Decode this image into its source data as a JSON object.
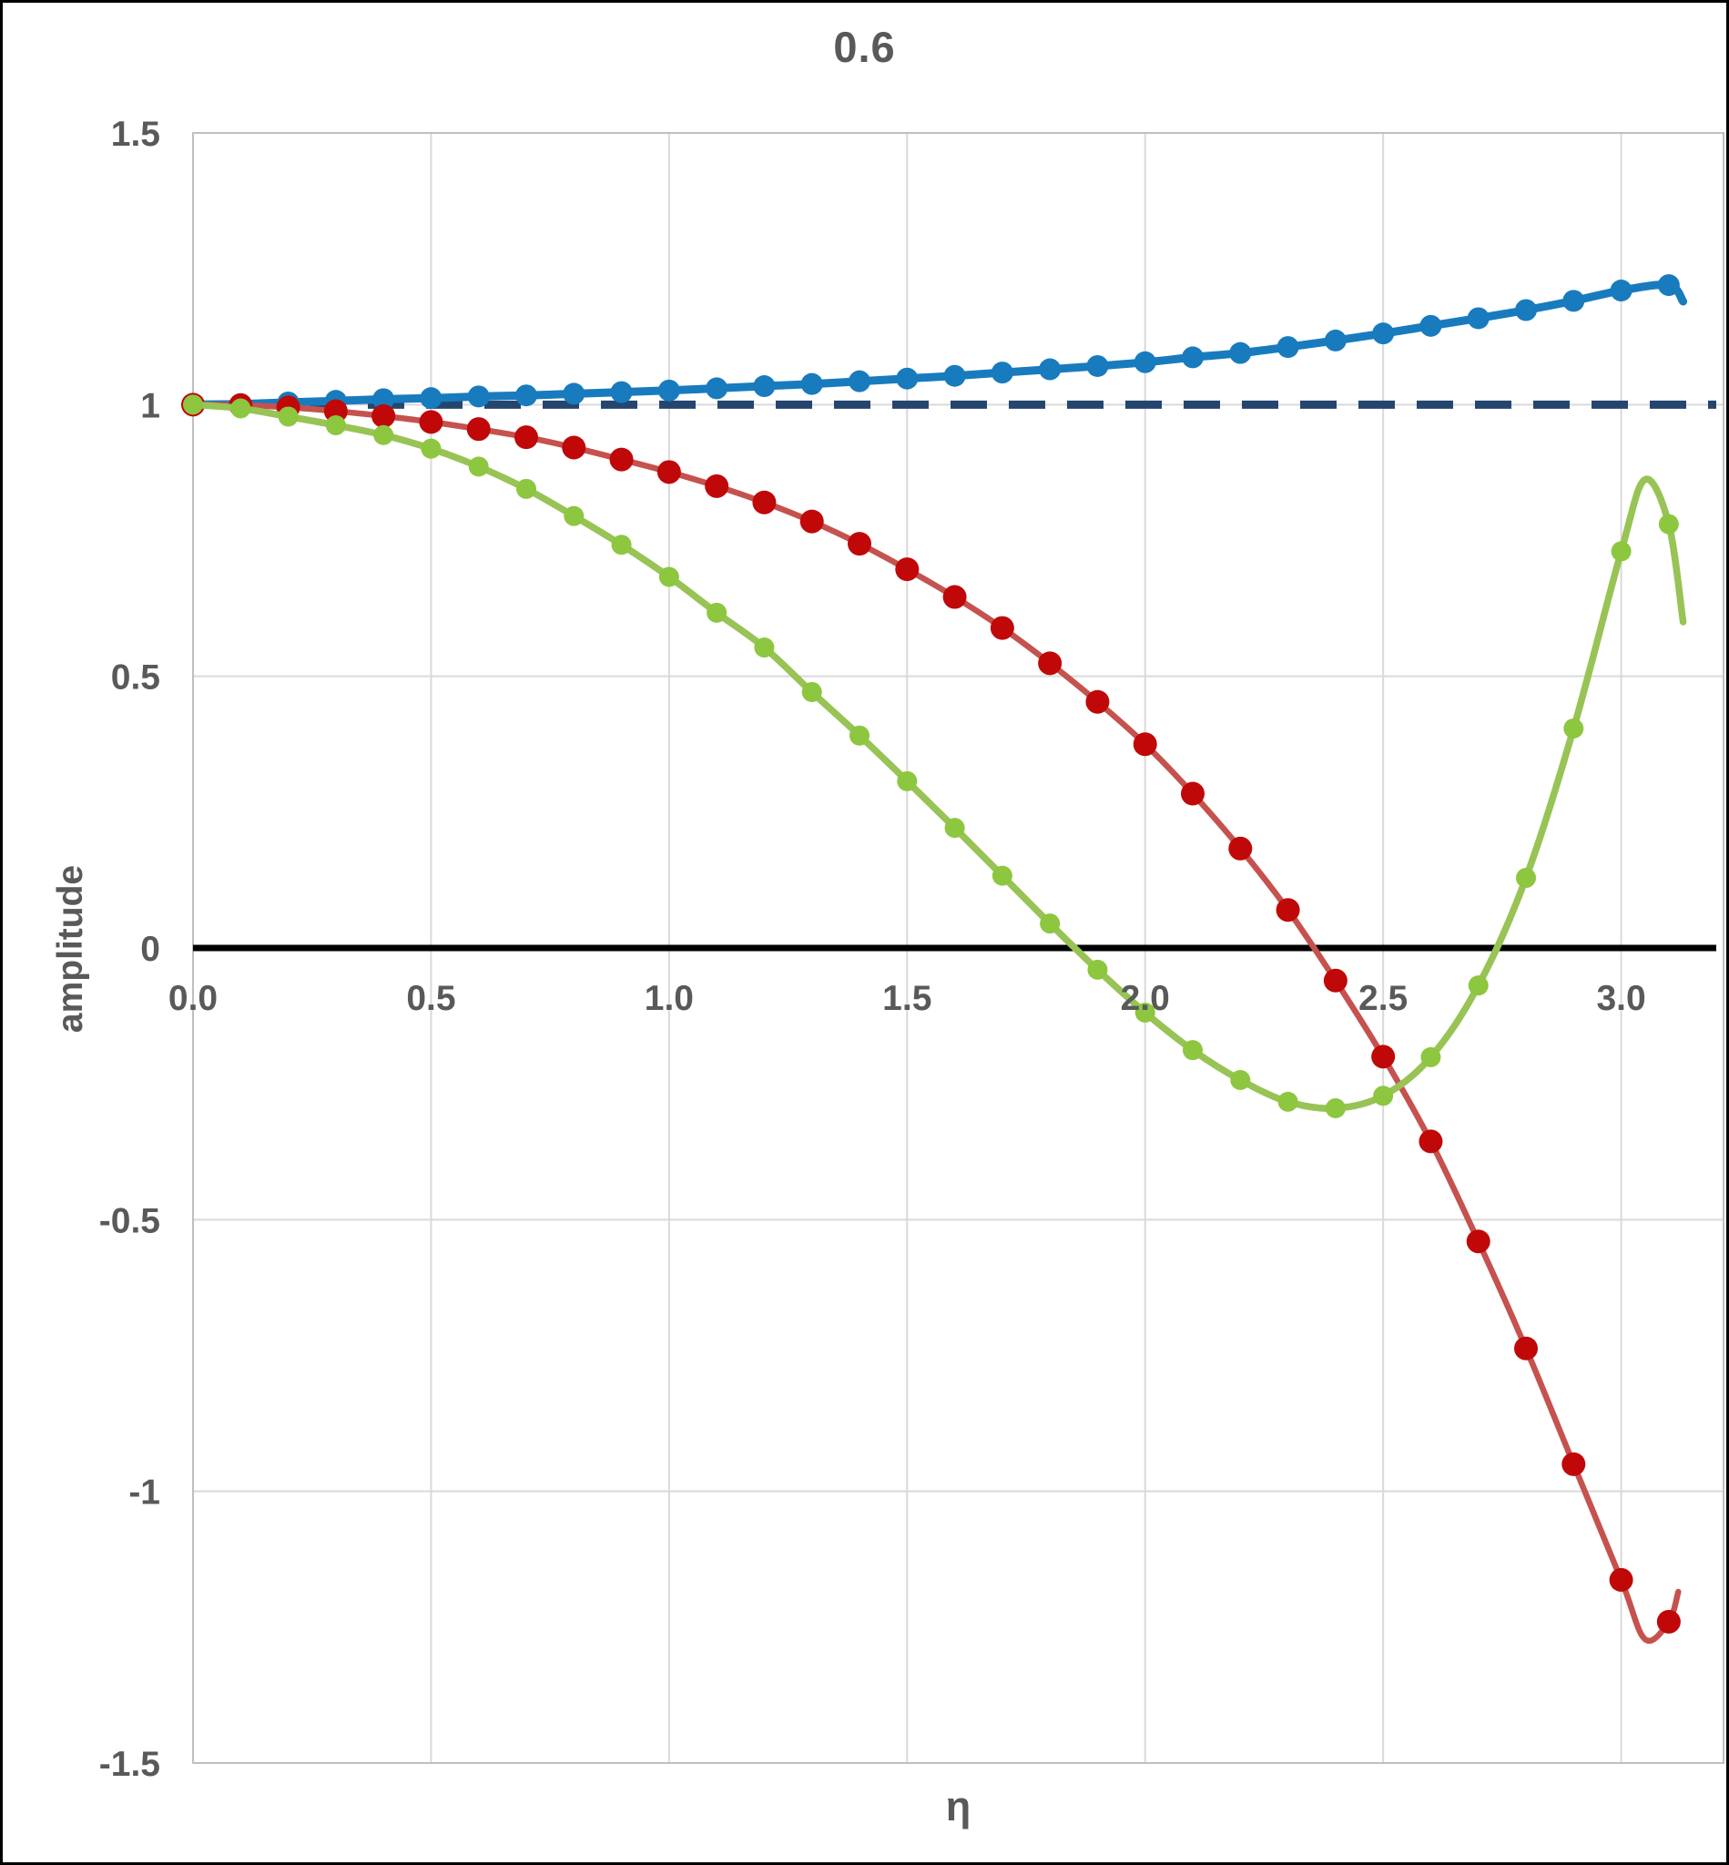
{
  "title": "0.6",
  "axes": {
    "x_label": "η",
    "y_label": "amplitude"
  },
  "colors": {
    "background": "#FFFFFF",
    "border": "#000000",
    "grid": "#D9D9D9",
    "frame": "#BFBFBF",
    "label": "#595959",
    "zero_line": "#000000",
    "dashed_reference": "#24466E",
    "blue": "#187BBE",
    "red_marker": "#C00808",
    "red_line": "#C5524E",
    "green_marker": "#8DC63F",
    "green_line": "#98C355"
  },
  "chart_data": {
    "type": "line",
    "title": "0.6",
    "xlabel": "η",
    "ylabel": "amplitude",
    "xlim": [
      0,
      3.215
    ],
    "ylim": [
      -1.5,
      1.5
    ],
    "grid": true,
    "x_tick_labels": [
      "0.0",
      "0.5",
      "1.0",
      "1.5",
      "2.0",
      "2.5",
      "3.0"
    ],
    "x_tick_values": [
      0,
      0.5,
      1.0,
      1.5,
      2.0,
      2.5,
      3.0
    ],
    "y_tick_labels": [
      "1.5",
      "1",
      "0.5",
      "0",
      "-0.5",
      "-1",
      "-1.5"
    ],
    "y_tick_values": [
      1.5,
      1.0,
      0.5,
      0,
      -0.5,
      -1.0,
      -1.5
    ],
    "x": [
      0,
      0.1,
      0.2,
      0.3,
      0.4,
      0.5,
      0.6,
      0.7,
      0.8,
      0.9,
      1.0,
      1.1,
      1.2,
      1.3,
      1.4,
      1.5,
      1.6,
      1.7,
      1.8,
      1.9,
      2.0,
      2.1,
      2.2,
      2.3,
      2.4,
      2.5,
      2.6,
      2.7,
      2.8,
      2.9,
      3.0,
      3.1
    ],
    "reference_lines": [
      {
        "name": "zero-axis",
        "y": 0,
        "color": "#000000",
        "style": "solid",
        "width": 7
      },
      {
        "name": "unity-dashed",
        "y": 1.0,
        "color": "#24466E",
        "style": "dashed",
        "width": 9
      }
    ],
    "series": [
      {
        "name": "blue-growing-amplitude",
        "marker_color": "#187BBE",
        "line_color": "#187BBE",
        "marker_radius": 12,
        "line_width": 9,
        "values": [
          1.0,
          1.001,
          1.004,
          1.007,
          1.01,
          1.012,
          1.015,
          1.017,
          1.02,
          1.023,
          1.026,
          1.03,
          1.034,
          1.038,
          1.043,
          1.048,
          1.053,
          1.059,
          1.065,
          1.071,
          1.078,
          1.087,
          1.095,
          1.106,
          1.118,
          1.131,
          1.145,
          1.159,
          1.174,
          1.191,
          1.21,
          1.22
        ],
        "line_tail": [
          [
            3.13,
            1.19
          ]
        ]
      },
      {
        "name": "red-decreasing-amplitude",
        "marker_color": "#C00808",
        "line_color": "#C5524E",
        "marker_radius": 13,
        "line_width": 6.5,
        "values": [
          1.0,
          0.999,
          0.995,
          0.988,
          0.979,
          0.968,
          0.955,
          0.94,
          0.921,
          0.899,
          0.876,
          0.85,
          0.82,
          0.785,
          0.744,
          0.697,
          0.646,
          0.589,
          0.524,
          0.453,
          0.375,
          0.284,
          0.183,
          0.07,
          -0.06,
          -0.2,
          -0.356,
          -0.54,
          -0.737,
          -0.95,
          -1.163,
          -1.24
        ],
        "line_tail": [
          [
            3.05,
            -1.272
          ],
          [
            3.12,
            -1.185
          ]
        ]
      },
      {
        "name": "green-oscillating-amplitude",
        "marker_color": "#8DC63F",
        "line_color": "#98C355",
        "marker_radius": 11,
        "line_width": 7.5,
        "values": [
          1.0,
          0.993,
          0.978,
          0.962,
          0.944,
          0.919,
          0.886,
          0.845,
          0.795,
          0.742,
          0.683,
          0.617,
          0.553,
          0.471,
          0.391,
          0.307,
          0.221,
          0.133,
          0.045,
          -0.04,
          -0.119,
          -0.188,
          -0.243,
          -0.283,
          -0.295,
          -0.272,
          -0.201,
          -0.069,
          0.129,
          0.404,
          0.73,
          0.78
        ],
        "line_tail": [
          [
            3.05,
            0.862
          ],
          [
            3.13,
            0.6
          ]
        ]
      }
    ]
  }
}
